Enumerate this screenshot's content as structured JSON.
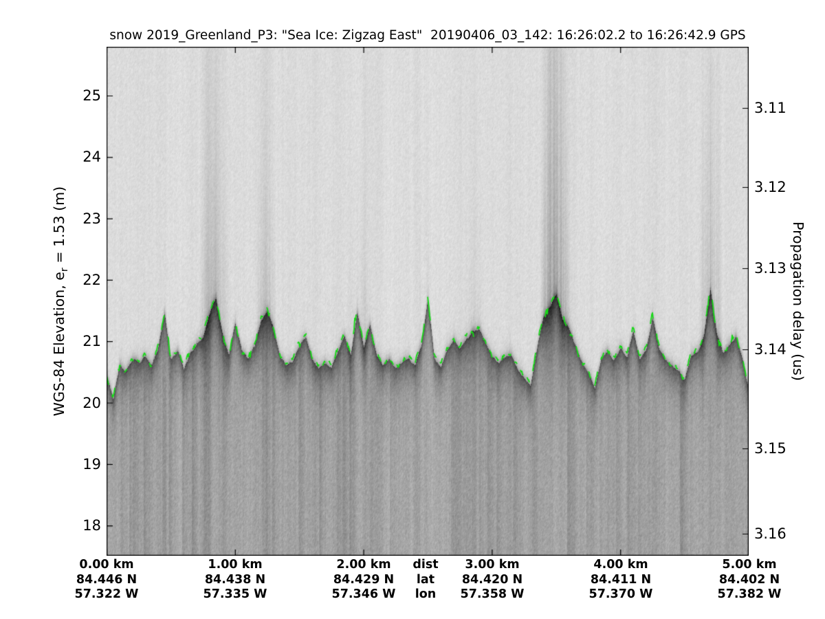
{
  "figure": {
    "title": "snow 2019_Greenland_P3: \"Sea Ice: Zigzag East\"  20190406_03_142: 16:26:02.2 to 16:26:42.9 GPS",
    "left_axis": {
      "label_pre": "WGS-84 Elevation, e",
      "label_sub": "r",
      "label_post": " = 1.53 (m)",
      "ticks": [
        25,
        24,
        23,
        22,
        21,
        20,
        19,
        18
      ]
    },
    "right_axis": {
      "label": "Propagation delay (us)",
      "ticks": [
        "3.11",
        "3.12",
        "3.13",
        "3.14",
        "3.15",
        "3.16"
      ]
    },
    "x_axis": {
      "row_labels": {
        "dist": "dist",
        "lat": "lat",
        "lon": "lon"
      },
      "columns": [
        {
          "dist": "0.00 km",
          "lat": "84.446 N",
          "lon": "57.322 W"
        },
        {
          "dist": "1.00 km",
          "lat": "84.438 N",
          "lon": "57.335 W"
        },
        {
          "dist": "2.00 km",
          "lat": "84.429 N",
          "lon": "57.346 W"
        },
        {
          "dist": "3.00 km",
          "lat": "84.420 N",
          "lon": "57.358 W"
        },
        {
          "dist": "4.00 km",
          "lat": "84.411 N",
          "lon": "57.370 W"
        },
        {
          "dist": "5.00 km",
          "lat": "84.402 N",
          "lon": "57.382 W"
        }
      ]
    }
  },
  "chart_data": {
    "type": "heatmap",
    "title": "snow 2019_Greenland_P3: \"Sea Ice: Zigzag East\"  20190406_03_142: 16:26:02.2 to 16:26:42.9 GPS",
    "description": "Snow radar sea-ice echogram: grayscale radar intensity vs along-track distance and WGS-84 elevation, with dashed green surface pick",
    "colormap": "grayscale (light = low return, dark = strong return)",
    "xlim_km": [
      0,
      5
    ],
    "x_ticks": {
      "dist_km": [
        0.0,
        1.0,
        2.0,
        3.0,
        4.0,
        5.0
      ],
      "lat_N": [
        84.446,
        84.438,
        84.429,
        84.42,
        84.411,
        84.402
      ],
      "lon_W": [
        57.322,
        57.335,
        57.346,
        57.358,
        57.37,
        57.382
      ]
    },
    "ylim_elevation_m": [
      17.5,
      25.8
    ],
    "y_ticks_elevation_m": [
      25,
      24,
      23,
      22,
      21,
      20,
      19,
      18
    ],
    "y_ticks_delay_us": [
      3.11,
      3.12,
      3.13,
      3.14,
      3.15,
      3.16
    ],
    "ylabel_left": "WGS-84 Elevation, er = 1.53 (m)",
    "ylabel_right": "Propagation delay (us)",
    "series": [
      {
        "name": "surface pick",
        "type": "line",
        "style": "dashed",
        "color": "#17d917",
        "x_km_start": 0.0,
        "x_km_step": 0.05,
        "elev_m": [
          20.45,
          20.05,
          20.6,
          20.5,
          20.7,
          20.65,
          20.75,
          20.6,
          20.9,
          21.45,
          20.7,
          20.85,
          20.55,
          20.8,
          20.95,
          21.05,
          21.45,
          21.7,
          21.1,
          20.75,
          21.3,
          20.85,
          20.7,
          20.9,
          21.35,
          21.5,
          21.2,
          20.75,
          20.6,
          20.7,
          20.95,
          21.1,
          20.7,
          20.55,
          20.65,
          20.6,
          20.85,
          21.1,
          20.8,
          21.5,
          20.9,
          21.25,
          20.8,
          20.6,
          20.7,
          20.55,
          20.65,
          20.75,
          20.6,
          20.95,
          21.7,
          20.75,
          20.6,
          20.85,
          21.0,
          20.9,
          21.05,
          21.15,
          21.2,
          21.0,
          20.75,
          20.65,
          20.75,
          20.8,
          20.55,
          20.4,
          20.3,
          20.9,
          21.4,
          21.55,
          21.75,
          21.35,
          21.2,
          20.9,
          20.65,
          20.5,
          20.25,
          20.7,
          20.85,
          20.7,
          20.9,
          20.75,
          21.2,
          20.7,
          20.85,
          21.4,
          20.9,
          20.7,
          20.6,
          20.5,
          20.35,
          20.75,
          20.85,
          21.1,
          21.85,
          21.1,
          20.8,
          20.95,
          21.1,
          20.7,
          20.2
        ]
      }
    ]
  }
}
